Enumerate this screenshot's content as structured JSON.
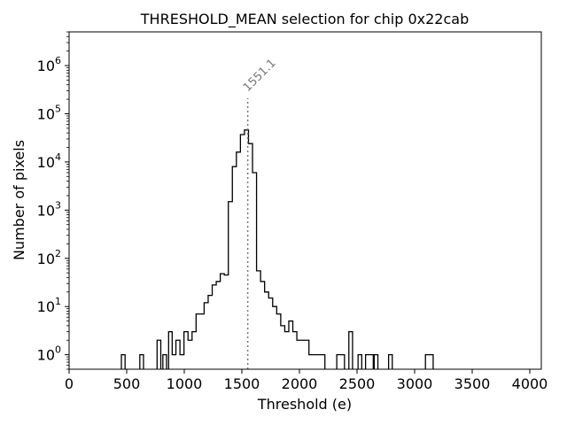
{
  "chart_data": {
    "type": "histogram",
    "title": "THRESHOLD_MEAN selection for chip 0x22cab",
    "xlabel": "Threshold (e)",
    "ylabel": "Number of pixels",
    "xlim": [
      0,
      4100
    ],
    "ylim": [
      0.5,
      5000000
    ],
    "yscale": "log",
    "x_ticks": [
      0,
      500,
      1000,
      1500,
      2000,
      2500,
      3000,
      3500,
      4000
    ],
    "x_tick_labels": [
      "0",
      "500",
      "1000",
      "1500",
      "2000",
      "2500",
      "3000",
      "3500",
      "4000"
    ],
    "y_ticks": [
      1,
      10,
      100,
      1000,
      10000,
      100000,
      1000000
    ],
    "y_tick_labels": [
      {
        "base": "10",
        "exp": "0"
      },
      {
        "base": "10",
        "exp": "1"
      },
      {
        "base": "10",
        "exp": "2"
      },
      {
        "base": "10",
        "exp": "3"
      },
      {
        "base": "10",
        "exp": "4"
      },
      {
        "base": "10",
        "exp": "5"
      },
      {
        "base": "10",
        "exp": "6"
      }
    ],
    "bin_width": 32,
    "bins": [
      {
        "x": 470,
        "count": 1
      },
      {
        "x": 630,
        "count": 1
      },
      {
        "x": 780,
        "count": 2
      },
      {
        "x": 830,
        "count": 1
      },
      {
        "x": 880,
        "count": 3
      },
      {
        "x": 910,
        "count": 1
      },
      {
        "x": 945,
        "count": 2
      },
      {
        "x": 980,
        "count": 1
      },
      {
        "x": 1015,
        "count": 3
      },
      {
        "x": 1050,
        "count": 2
      },
      {
        "x": 1085,
        "count": 3
      },
      {
        "x": 1120,
        "count": 7
      },
      {
        "x": 1155,
        "count": 7
      },
      {
        "x": 1190,
        "count": 12
      },
      {
        "x": 1225,
        "count": 17
      },
      {
        "x": 1260,
        "count": 28
      },
      {
        "x": 1295,
        "count": 33
      },
      {
        "x": 1330,
        "count": 48
      },
      {
        "x": 1365,
        "count": 45
      },
      {
        "x": 1400,
        "count": 1500
      },
      {
        "x": 1435,
        "count": 8000
      },
      {
        "x": 1470,
        "count": 16000
      },
      {
        "x": 1505,
        "count": 37000
      },
      {
        "x": 1540,
        "count": 46000
      },
      {
        "x": 1575,
        "count": 24000
      },
      {
        "x": 1610,
        "count": 6000
      },
      {
        "x": 1645,
        "count": 55
      },
      {
        "x": 1680,
        "count": 33
      },
      {
        "x": 1715,
        "count": 20
      },
      {
        "x": 1750,
        "count": 15
      },
      {
        "x": 1785,
        "count": 10
      },
      {
        "x": 1820,
        "count": 7
      },
      {
        "x": 1855,
        "count": 4
      },
      {
        "x": 1890,
        "count": 3
      },
      {
        "x": 1925,
        "count": 5
      },
      {
        "x": 1960,
        "count": 3
      },
      {
        "x": 1995,
        "count": 2
      },
      {
        "x": 2030,
        "count": 2
      },
      {
        "x": 2065,
        "count": 2
      },
      {
        "x": 2100,
        "count": 1
      },
      {
        "x": 2135,
        "count": 1
      },
      {
        "x": 2170,
        "count": 1
      },
      {
        "x": 2205,
        "count": 1
      },
      {
        "x": 2340,
        "count": 1
      },
      {
        "x": 2375,
        "count": 1
      },
      {
        "x": 2445,
        "count": 3
      },
      {
        "x": 2525,
        "count": 1
      },
      {
        "x": 2590,
        "count": 1
      },
      {
        "x": 2625,
        "count": 1
      },
      {
        "x": 2665,
        "count": 1
      },
      {
        "x": 2790,
        "count": 1
      },
      {
        "x": 3110,
        "count": 1
      },
      {
        "x": 3145,
        "count": 1
      }
    ],
    "vline": {
      "x": 1551.1,
      "label": "1551.1",
      "color": "#777777",
      "style": "dotted"
    },
    "line_color": "#000000",
    "grid": false,
    "legend": "none"
  }
}
